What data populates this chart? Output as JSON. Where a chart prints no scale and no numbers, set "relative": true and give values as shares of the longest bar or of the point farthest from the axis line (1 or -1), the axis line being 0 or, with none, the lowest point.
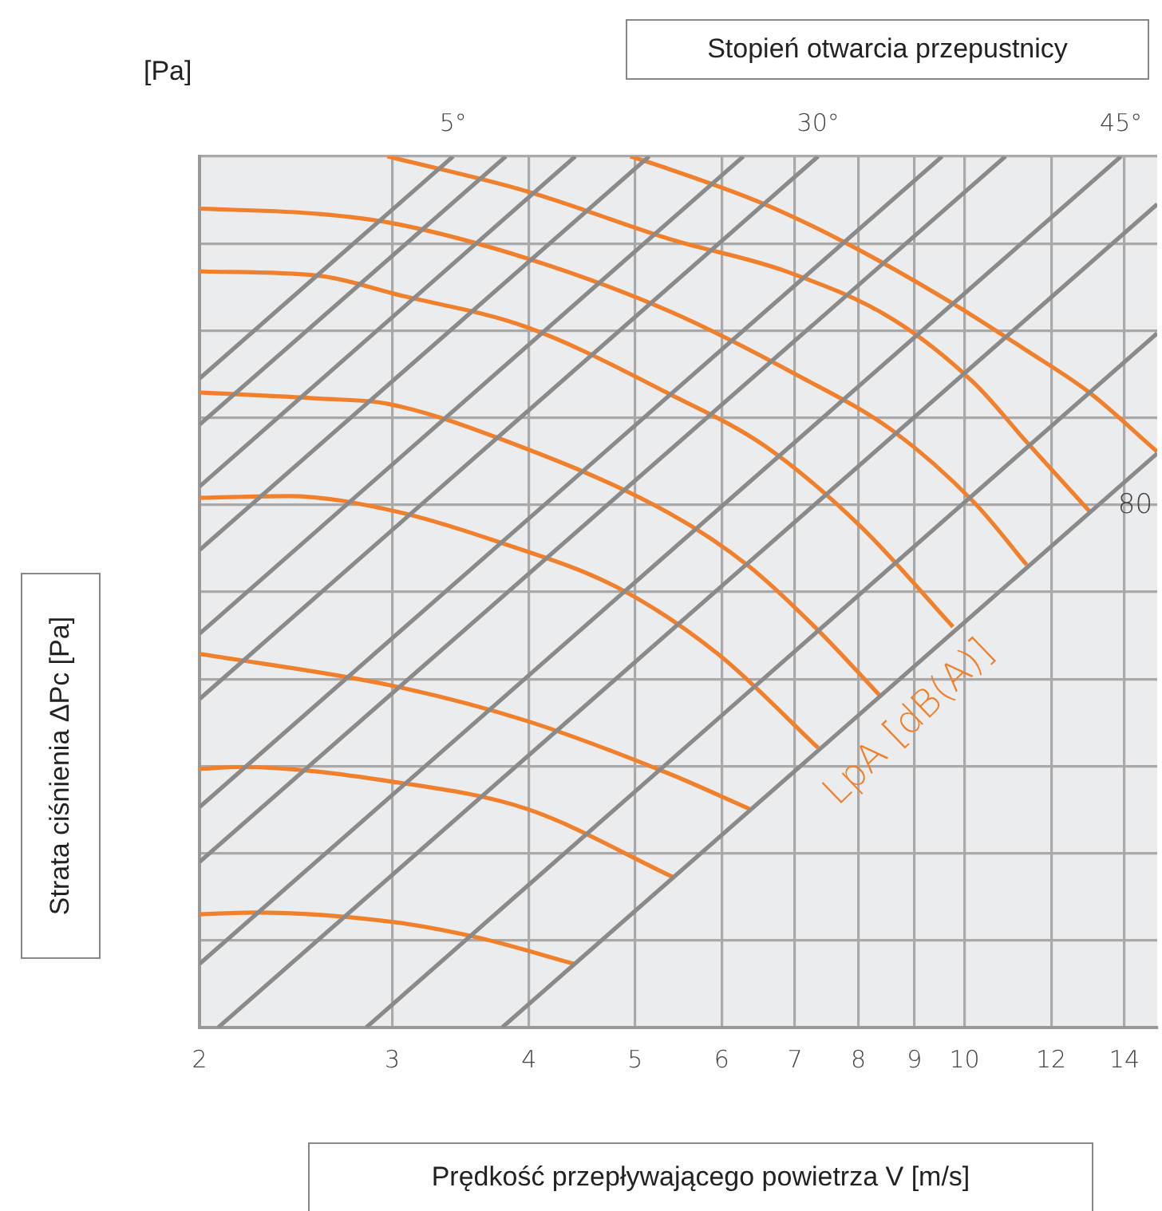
{
  "chart_data": {
    "type": "line",
    "x2label": "Stopień otwarcia przepustnicy",
    "xlabel": "Prędkość przepływającego powietrza V [m/s]",
    "ylabel": "Strata ciśnienia ΔPc [Pa]",
    "annotations": [
      "[Pa]",
      "LpA [dB(A)]",
      {
        "text": "5°",
        "x": 3.41,
        "y": 1.0
      },
      {
        "text": "30°",
        "x": 7.35,
        "y": 1.0
      },
      {
        "text": "45°",
        "x": 13.9,
        "y": 1.0
      },
      {
        "text": "80",
        "x": 13.0,
        "y": 0.593
      }
    ],
    "log": "x",
    "xlim": [
      2,
      15
    ],
    "xticks": [
      2,
      3,
      4,
      5,
      6,
      7,
      8,
      9,
      10,
      12,
      14
    ],
    "relative": true,
    "grid": true,
    "series": [
      {
        "color": "#8a8a8a",
        "x": [
          2.0,
          3.41
        ],
        "values": [
          0.745,
          1.0
        ]
      },
      {
        "color": "#8a8a8a",
        "x": [
          2.0,
          3.81
        ],
        "values": [
          0.692,
          1.0
        ]
      },
      {
        "color": "#8a8a8a",
        "x": [
          2.0,
          4.41
        ],
        "values": [
          0.621,
          1.0
        ]
      },
      {
        "color": "#8a8a8a",
        "x": [
          2.0,
          5.15
        ],
        "values": [
          0.548,
          1.0
        ]
      },
      {
        "color": "#8a8a8a",
        "x": [
          2.0,
          6.28
        ],
        "values": [
          0.452,
          1.0
        ]
      },
      {
        "color": "#8a8a8a",
        "x": [
          2.0,
          7.35
        ],
        "values": [
          0.377,
          1.0
        ]
      },
      {
        "color": "#8a8a8a",
        "x": [
          2.0,
          9.54
        ],
        "values": [
          0.253,
          1.0
        ]
      },
      {
        "color": "#8a8a8a",
        "x": [
          2.0,
          10.9
        ],
        "values": [
          0.19,
          1.0
        ]
      },
      {
        "color": "#8a8a8a",
        "x": [
          2.0,
          13.9
        ],
        "values": [
          0.073,
          1.0
        ]
      },
      {
        "color": "#8a8a8a",
        "x": [
          2.08,
          15.0
        ],
        "values": [
          0,
          0.945
        ]
      },
      {
        "color": "#8a8a8a",
        "x": [
          2.84,
          15.0
        ],
        "values": [
          0,
          0.797
        ]
      },
      {
        "color": "#8a8a8a",
        "x": [
          3.78,
          15.0
        ],
        "values": [
          0,
          0.659
        ]
      },
      {
        "color": "#f0802c",
        "x": [
          4.95,
          5.21,
          6.51,
          7.78,
          9.73,
          11.4,
          13.0,
          15.0
        ],
        "values": [
          1.0,
          0.991,
          0.947,
          0.901,
          0.832,
          0.777,
          0.729,
          0.661
        ]
      },
      {
        "color": "#f0802c",
        "x": [
          2.97,
          3.98,
          5.38,
          6.87,
          8.6,
          10.2,
          11.4,
          13.0
        ],
        "values": [
          1.0,
          0.96,
          0.905,
          0.868,
          0.813,
          0.74,
          0.672,
          0.593
        ]
      },
      {
        "color": "#f0802c",
        "x": [
          2.0,
          2.57,
          3.01,
          3.98,
          5.38,
          7.03,
          8.6,
          10.2,
          11.4
        ],
        "values": [
          0.94,
          0.934,
          0.923,
          0.883,
          0.822,
          0.749,
          0.685,
          0.603,
          0.531
        ]
      },
      {
        "color": "#f0802c",
        "x": [
          2.0,
          2.57,
          3.04,
          3.98,
          5.38,
          6.58,
          8.04,
          9.76
        ],
        "values": [
          0.868,
          0.863,
          0.841,
          0.804,
          0.727,
          0.667,
          0.575,
          0.46
        ]
      },
      {
        "color": "#f0802c",
        "x": [
          2.0,
          2.57,
          2.97,
          3.76,
          5.38,
          6.36,
          7.35,
          8.37
        ],
        "values": [
          0.729,
          0.722,
          0.716,
          0.676,
          0.59,
          0.529,
          0.456,
          0.381
        ]
      },
      {
        "color": "#f0802c",
        "x": [
          2.0,
          2.41,
          3.01,
          3.76,
          4.82,
          5.95,
          7.35
        ],
        "values": [
          0.608,
          0.61,
          0.593,
          0.557,
          0.505,
          0.429,
          0.321
        ]
      },
      {
        "color": "#f0802c",
        "x": [
          2.0,
          3.01,
          3.98,
          5.38,
          6.36
        ],
        "values": [
          0.429,
          0.392,
          0.352,
          0.291,
          0.251
        ]
      },
      {
        "color": "#f0802c",
        "x": [
          2.0,
          2.18,
          3.01,
          3.98,
          5.43
        ],
        "values": [
          0.297,
          0.299,
          0.282,
          0.251,
          0.172
        ]
      },
      {
        "color": "#f0802c",
        "x": [
          2.0,
          2.25,
          3.01,
          3.6,
          4.4
        ],
        "values": [
          0.13,
          0.132,
          0.121,
          0.103,
          0.073
        ]
      }
    ]
  }
}
